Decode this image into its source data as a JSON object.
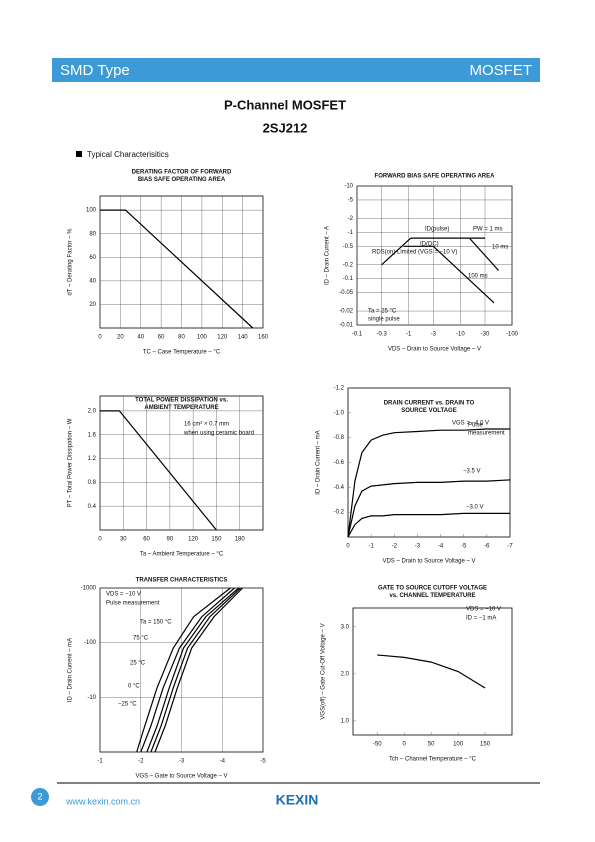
{
  "header": {
    "left": "SMD Type",
    "right": "MOSFET"
  },
  "title": {
    "name": "P-Channel MOSFET",
    "part": "2SJ212"
  },
  "section": "Typical Characterisitics",
  "chart_data": [
    {
      "type": "line",
      "title": [
        "DERATING FACTOR OF FORWARD",
        "BIAS SAFE OPERATING AREA"
      ],
      "xlabel": "TC – Case Temperature – °C",
      "ylabel": "dT – Derating Factor – %",
      "xlim": [
        0,
        160
      ],
      "ylim": [
        0,
        112
      ],
      "xticks": [
        0,
        20,
        40,
        60,
        80,
        100,
        120,
        140,
        160
      ],
      "yticks": [
        20,
        40,
        60,
        80,
        100
      ],
      "grid": true,
      "series": [
        {
          "color": "#000000",
          "x": [
            0,
            25,
            150
          ],
          "values": [
            100,
            100,
            0
          ]
        }
      ]
    },
    {
      "type": "line",
      "title": [
        "FORWARD BIAS SAFE OPERATING AREA"
      ],
      "xlabel": "VDS – Drain to Source Voltage – V",
      "ylabel": "ID – Drain Current – A",
      "xlog": true,
      "ylog": true,
      "xlim": [
        -0.1,
        -100
      ],
      "ylim": [
        -0.01,
        -10
      ],
      "xticks": [
        -0.1,
        -0.3,
        -1,
        -3,
        -10,
        -30,
        -100
      ],
      "yticks": [
        -10,
        -5,
        -2,
        -1,
        -0.5,
        -0.2,
        -0.1,
        -0.05,
        -0.02,
        -0.01
      ],
      "grid": true,
      "annotations": [
        "PW = 1 ms",
        "Ta = 25 °C",
        "single pulse"
      ],
      "series": [
        {
          "name": "RDS(on) Limited (VGS = −10 V)",
          "color": "#000000",
          "x": [
            -0.3,
            -1.1
          ],
          "values": [
            -0.2,
            -0.75
          ]
        },
        {
          "name": "ID(pulse)",
          "color": "#000000",
          "x": [
            -1.1,
            -30
          ],
          "values": [
            -0.75,
            -0.75
          ]
        },
        {
          "name": "ID(DC)",
          "color": "#000000",
          "x": [
            -0.8,
            -3
          ],
          "values": [
            -0.5,
            -0.5
          ]
        },
        {
          "name": "100 ms",
          "color": "#000000",
          "x": [
            -3,
            -45
          ],
          "values": [
            -0.5,
            -0.03
          ]
        },
        {
          "name": "10 ms",
          "color": "#000000",
          "x": [
            -15,
            -55
          ],
          "values": [
            -0.75,
            -0.15
          ]
        }
      ]
    },
    {
      "type": "line",
      "title": [
        "TOTAL POWER DISSIPATION vs.",
        "AMBIENT TEMPERATURE"
      ],
      "xlabel": "Ta – Ambient Temperature – °C",
      "ylabel": "PT – Total Power Dissipation – W",
      "xlim": [
        0,
        210
      ],
      "ylim": [
        0,
        2.25
      ],
      "xticks": [
        0,
        30,
        60,
        90,
        120,
        150,
        180
      ],
      "yticks": [
        {
          "value": 2,
          "label": "2.0"
        },
        1.6,
        1.2,
        0.8,
        0.4
      ],
      "grid": true,
      "annotations": [
        "16 cm² × 0.7 mm",
        "when using ceramic board"
      ],
      "series": [
        {
          "color": "#000000",
          "x": [
            0,
            25,
            150
          ],
          "values": [
            2,
            2,
            0
          ]
        }
      ]
    },
    {
      "type": "line",
      "title": [
        "DRAIN CURRENT vs. DRAIN TO",
        "SOURCE VOLTAGE"
      ],
      "xlabel": "VDS – Drain to Source Voltage – V",
      "ylabel": "ID – Drain Current – mA",
      "xlim": [
        0,
        -7
      ],
      "ylim": [
        0,
        -1.2
      ],
      "xticks": [
        0,
        -1,
        -2,
        -3,
        -4,
        -5,
        -6,
        -7
      ],
      "yticks": [
        -0.2,
        -0.4,
        -0.6,
        -0.8,
        {
          "value": -1,
          "label": "-1.0"
        },
        -1.2
      ],
      "grid": false,
      "annotations": [
        "Pulse",
        "measurement"
      ],
      "series": [
        {
          "name": "VGS = −4.0 V",
          "color": "#000000",
          "x": [
            0,
            -0.3,
            -0.6,
            -1,
            -1.5,
            -2,
            -3,
            -4,
            -5,
            -6,
            -7
          ],
          "values": [
            0,
            -0.45,
            -0.68,
            -0.78,
            -0.82,
            -0.84,
            -0.85,
            -0.86,
            -0.86,
            -0.87,
            -0.87
          ]
        },
        {
          "name": "−3.5 V",
          "color": "#000000",
          "x": [
            0,
            -0.3,
            -0.6,
            -1,
            -1.5,
            -2,
            -3,
            -4,
            -5,
            -6,
            -7
          ],
          "values": [
            0,
            -0.25,
            -0.37,
            -0.41,
            -0.42,
            -0.43,
            -0.44,
            -0.44,
            -0.45,
            -0.45,
            -0.46
          ]
        },
        {
          "name": "−3.0 V",
          "color": "#000000",
          "x": [
            0,
            -0.3,
            -0.6,
            -1,
            -1.5,
            -2,
            -3,
            -4,
            -5,
            -6,
            -7
          ],
          "values": [
            0,
            -0.1,
            -0.15,
            -0.17,
            -0.17,
            -0.18,
            -0.18,
            -0.18,
            -0.19,
            -0.19,
            -0.19
          ]
        }
      ]
    },
    {
      "type": "line",
      "title": [
        "TRANSFER CHARACTERISTICS"
      ],
      "xlabel": "VGS – Gate to Source Voltage – V",
      "ylabel": "ID – Drain Current – mA",
      "ylog": true,
      "xlim": [
        -1,
        -5
      ],
      "ylim": [
        -1,
        -1000
      ],
      "xticks": [
        -1,
        -2,
        -3,
        -4,
        -5
      ],
      "yticks": [
        -1000,
        -100,
        -10
      ],
      "grid": true,
      "annotations": [
        "VDS = −10 V",
        "Pulse measurement"
      ],
      "series": [
        {
          "name": "Ta = 150 °C",
          "color": "#000000",
          "x": [
            -1.9,
            -2.1,
            -2.4,
            -2.8,
            -3.3,
            -4.2
          ],
          "values": [
            -1,
            -3,
            -15,
            -80,
            -300,
            -1000
          ]
        },
        {
          "name": "75 °C",
          "color": "#000000",
          "x": [
            -2,
            -2.25,
            -2.55,
            -2.95,
            -3.5,
            -4.3
          ],
          "values": [
            -1,
            -3,
            -15,
            -80,
            -300,
            -1000
          ]
        },
        {
          "name": "25 °C",
          "color": "#000000",
          "x": [
            -2.15,
            -2.4,
            -2.7,
            -3.05,
            -3.6,
            -4.4
          ],
          "values": [
            -1,
            -3,
            -15,
            -80,
            -300,
            -1000
          ]
        },
        {
          "name": "0 °C",
          "color": "#000000",
          "x": [
            -2.25,
            -2.5,
            -2.8,
            -3.15,
            -3.7,
            -4.45
          ],
          "values": [
            -1,
            -3,
            -15,
            -80,
            -300,
            -1000
          ]
        },
        {
          "name": "−25 °C",
          "color": "#000000",
          "x": [
            -2.35,
            -2.6,
            -2.9,
            -3.25,
            -3.8,
            -4.5
          ],
          "values": [
            -1,
            -3,
            -15,
            -80,
            -300,
            -1000
          ]
        }
      ]
    },
    {
      "type": "line",
      "title": [
        "GATE TO SOURCE CUTOFF VOLTAGE",
        "vs. CHANNEL TEMPERATURE"
      ],
      "xlabel": "Tch – Channel Temperature – °C",
      "ylabel": "VGS(off) – Gate Cut-Off Voltage – V",
      "xlim": [
        -95,
        200
      ],
      "ylim": [
        0.7,
        3.4
      ],
      "xticks": [
        -50,
        0,
        50,
        100,
        150
      ],
      "yticks": [
        {
          "value": 3,
          "label": "3.0"
        },
        {
          "value": 2,
          "label": "2.0"
        },
        {
          "value": 1,
          "label": "1.0"
        }
      ],
      "grid": false,
      "annotations": [
        "VDS = −10 V",
        "ID = −1 mA"
      ],
      "series": [
        {
          "color": "#000000",
          "x": [
            -50,
            0,
            50,
            100,
            150
          ],
          "values": [
            2.4,
            2.35,
            2.25,
            2.05,
            1.7
          ]
        }
      ]
    }
  ],
  "footer": {
    "page": "2",
    "url": "www.kexin.com.cn",
    "logo": "KEXIN"
  }
}
